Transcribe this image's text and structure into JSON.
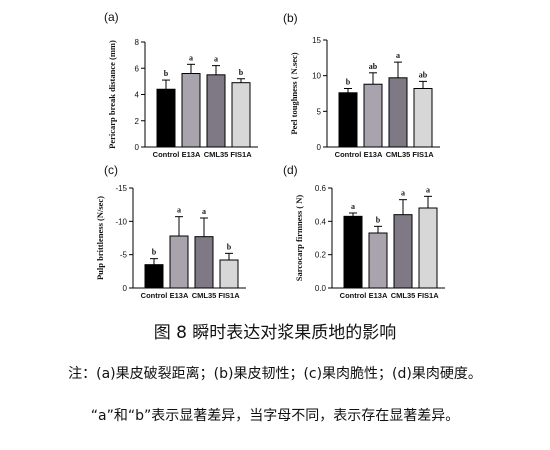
{
  "caption": "图 8 瞬时表达对浆果质地的影响",
  "note_line1": "注：(a)果皮破裂距离；(b)果皮韧性；(c)果肉脆性；(d)果肉硬度。",
  "note_line2": "“a”和“b”表示显著差异，当字母不同，表示存在显著差异。",
  "colors": {
    "Control": "#000000",
    "E13A": "#a8a3ac",
    "CML35": "#7e7984",
    "FIS1A": "#d7d7d7"
  },
  "chart_data": [
    {
      "panel": "(a)",
      "type": "bar",
      "categories": [
        "Control",
        "E13A",
        "CML35",
        "FIS1A"
      ],
      "values": [
        4.4,
        5.6,
        5.5,
        4.9
      ],
      "errors": [
        0.7,
        0.7,
        0.7,
        0.3
      ],
      "sig_letters": [
        "b",
        "a",
        "a",
        "b"
      ],
      "ylabel": "Pericarp break distance (mm)",
      "ylim": [
        0,
        8
      ],
      "yticks": [
        0,
        2,
        4,
        6,
        8
      ],
      "ytick_labels": [
        "0",
        "2",
        "4",
        "6",
        "8"
      ]
    },
    {
      "panel": "(b)",
      "type": "bar",
      "categories": [
        "Control",
        "E13A",
        "CML35",
        "FIS1A"
      ],
      "values": [
        7.6,
        8.8,
        9.7,
        8.2
      ],
      "errors": [
        0.6,
        1.6,
        2.2,
        1.0
      ],
      "sig_letters": [
        "b",
        "ab",
        "a",
        "ab"
      ],
      "ylabel": "Peel toughness ( N.sec)",
      "ylim": [
        0,
        15
      ],
      "yticks": [
        0,
        5,
        10,
        15
      ],
      "ytick_labels": [
        "0",
        "5",
        "10",
        "15"
      ]
    },
    {
      "panel": "(c)",
      "type": "bar",
      "categories": [
        "Control",
        "E13A",
        "CML35",
        "FIS1A"
      ],
      "values": [
        -3.5,
        -7.8,
        -7.7,
        -4.2
      ],
      "errors": [
        0.9,
        2.9,
        2.8,
        1.0
      ],
      "sig_letters": [
        "b",
        "a",
        "a",
        "b"
      ],
      "ylabel": "Pulp brittleness (N/sec)",
      "ylim": [
        0,
        -15
      ],
      "yticks": [
        0,
        -5,
        -10,
        -15
      ],
      "ytick_labels": [
        "0",
        "-5",
        "-10",
        "-15"
      ]
    },
    {
      "panel": "(d)",
      "type": "bar",
      "categories": [
        "Control",
        "E13A",
        "CML35",
        "FIS1A"
      ],
      "values": [
        0.43,
        0.33,
        0.44,
        0.48
      ],
      "errors": [
        0.02,
        0.04,
        0.09,
        0.07
      ],
      "sig_letters": [
        "a",
        "b",
        "a",
        "a"
      ],
      "ylabel": "Sarcocarp firmness ( N)",
      "ylim": [
        0,
        0.6
      ],
      "yticks": [
        0,
        0.2,
        0.4,
        0.6
      ],
      "ytick_labels": [
        "0.0",
        "0.2",
        "0.4",
        "0.6"
      ]
    }
  ]
}
